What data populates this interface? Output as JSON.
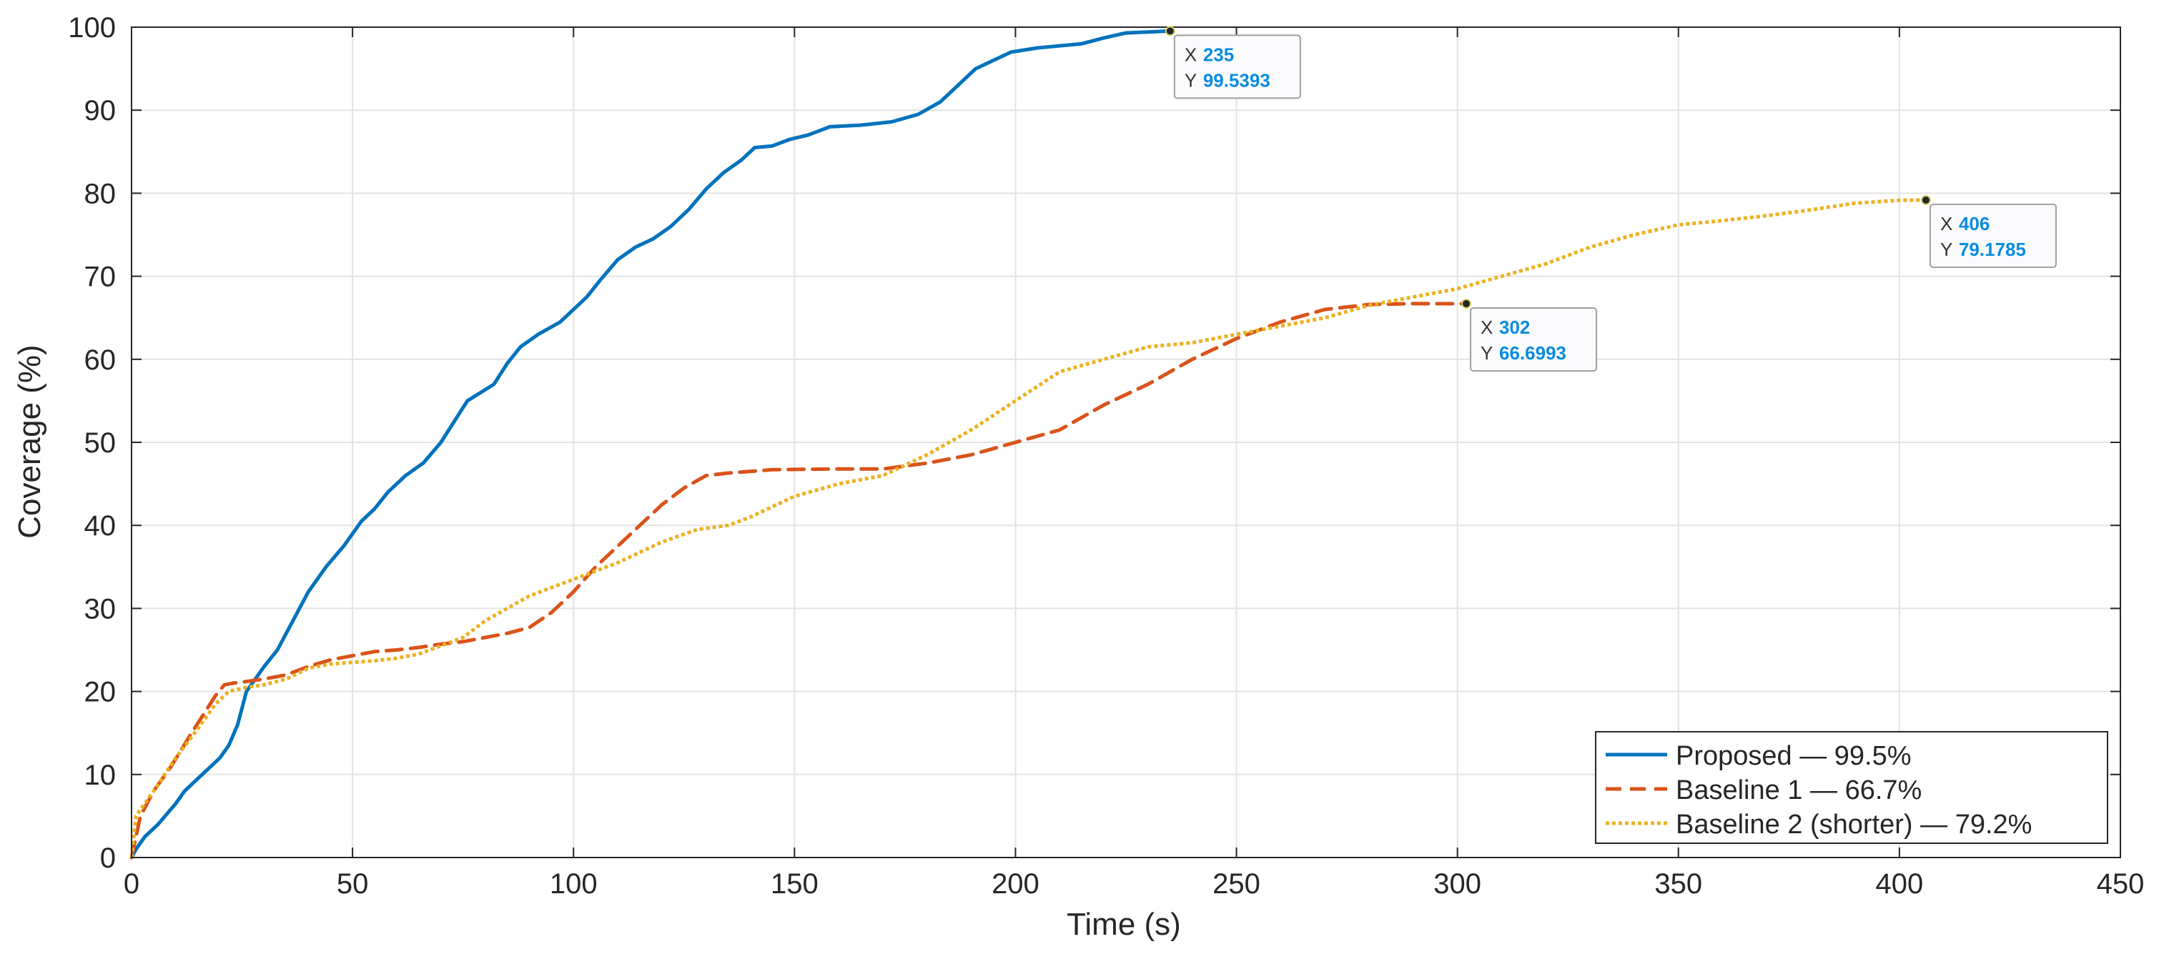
{
  "chart_data": {
    "type": "line",
    "title": "",
    "xlabel": "Time (s)",
    "ylabel": "Coverage (%)",
    "xlim": [
      0,
      450
    ],
    "ylim": [
      0,
      100
    ],
    "xticks": [
      0,
      50,
      100,
      150,
      200,
      250,
      300,
      350,
      400,
      450
    ],
    "yticks": [
      0,
      10,
      20,
      30,
      40,
      50,
      60,
      70,
      80,
      90,
      100
    ],
    "grid": true,
    "legend_position": "bottom-right",
    "series": [
      {
        "name": "Proposed — 99.5%",
        "color": "#0072BD",
        "style": "solid",
        "points": [
          [
            0,
            0
          ],
          [
            1,
            1
          ],
          [
            3,
            2.5
          ],
          [
            6,
            4
          ],
          [
            10,
            6.5
          ],
          [
            12,
            8
          ],
          [
            15,
            9.5
          ],
          [
            18,
            11
          ],
          [
            20,
            12
          ],
          [
            22,
            13.5
          ],
          [
            24,
            16
          ],
          [
            26,
            20
          ],
          [
            28,
            21.5
          ],
          [
            30,
            23
          ],
          [
            33,
            25
          ],
          [
            36,
            28
          ],
          [
            40,
            32
          ],
          [
            44,
            35
          ],
          [
            48,
            37.5
          ],
          [
            52,
            40.5
          ],
          [
            55,
            42
          ],
          [
            58,
            44
          ],
          [
            62,
            46
          ],
          [
            66,
            47.5
          ],
          [
            70,
            50
          ],
          [
            73,
            52.5
          ],
          [
            76,
            55
          ],
          [
            79,
            56
          ],
          [
            82,
            57
          ],
          [
            85,
            59.5
          ],
          [
            88,
            61.5
          ],
          [
            92,
            63
          ],
          [
            97,
            64.5
          ],
          [
            100,
            66
          ],
          [
            103,
            67.5
          ],
          [
            106,
            69.5
          ],
          [
            110,
            72
          ],
          [
            114,
            73.5
          ],
          [
            118,
            74.5
          ],
          [
            122,
            76
          ],
          [
            126,
            78
          ],
          [
            130,
            80.5
          ],
          [
            134,
            82.5
          ],
          [
            138,
            84
          ],
          [
            141,
            85.5
          ],
          [
            145,
            85.7
          ],
          [
            149,
            86.5
          ],
          [
            153,
            87
          ],
          [
            158,
            88
          ],
          [
            165,
            88.2
          ],
          [
            172,
            88.6
          ],
          [
            178,
            89.5
          ],
          [
            183,
            91
          ],
          [
            187,
            93
          ],
          [
            191,
            95
          ],
          [
            195,
            96
          ],
          [
            199,
            97
          ],
          [
            205,
            97.5
          ],
          [
            215,
            98
          ],
          [
            220,
            98.7
          ],
          [
            225,
            99.3
          ],
          [
            235,
            99.5393
          ]
        ]
      },
      {
        "name": "Baseline 1 — 66.7%",
        "color": "#D95319",
        "style": "dashed",
        "points": [
          [
            0,
            0
          ],
          [
            2,
            5
          ],
          [
            5,
            8
          ],
          [
            9,
            11
          ],
          [
            13,
            14.5
          ],
          [
            16,
            17
          ],
          [
            19,
            19.5
          ],
          [
            21,
            20.8
          ],
          [
            23,
            21
          ],
          [
            26,
            21.2
          ],
          [
            30,
            21.5
          ],
          [
            35,
            22
          ],
          [
            40,
            23
          ],
          [
            45,
            23.8
          ],
          [
            50,
            24.3
          ],
          [
            55,
            24.8
          ],
          [
            60,
            25
          ],
          [
            65,
            25.3
          ],
          [
            70,
            25.7
          ],
          [
            75,
            26
          ],
          [
            80,
            26.5
          ],
          [
            85,
            27
          ],
          [
            90,
            27.7
          ],
          [
            95,
            29.5
          ],
          [
            100,
            32
          ],
          [
            105,
            35
          ],
          [
            110,
            37.5
          ],
          [
            115,
            40
          ],
          [
            120,
            42.5
          ],
          [
            125,
            44.5
          ],
          [
            130,
            46
          ],
          [
            135,
            46.3
          ],
          [
            145,
            46.7
          ],
          [
            160,
            46.8
          ],
          [
            170,
            46.8
          ],
          [
            180,
            47.5
          ],
          [
            190,
            48.5
          ],
          [
            200,
            50
          ],
          [
            210,
            51.5
          ],
          [
            220,
            54.5
          ],
          [
            230,
            57
          ],
          [
            240,
            60
          ],
          [
            250,
            62.5
          ],
          [
            260,
            64.5
          ],
          [
            270,
            66
          ],
          [
            280,
            66.6
          ],
          [
            290,
            66.7
          ],
          [
            302,
            66.6993
          ]
        ]
      },
      {
        "name": "Baseline 2 (shorter) — 79.2%",
        "color": "#EDB120",
        "style": "dotted",
        "points": [
          [
            0,
            0
          ],
          [
            1,
            5
          ],
          [
            5,
            8
          ],
          [
            10,
            12
          ],
          [
            15,
            15.5
          ],
          [
            19,
            18.5
          ],
          [
            22,
            20
          ],
          [
            26,
            20.5
          ],
          [
            30,
            20.8
          ],
          [
            35,
            21.5
          ],
          [
            40,
            22.8
          ],
          [
            45,
            23.3
          ],
          [
            50,
            23.5
          ],
          [
            55,
            23.7
          ],
          [
            60,
            24
          ],
          [
            65,
            24.5
          ],
          [
            70,
            25.5
          ],
          [
            75,
            26.5
          ],
          [
            80,
            28.5
          ],
          [
            85,
            30
          ],
          [
            90,
            31.5
          ],
          [
            95,
            32.5
          ],
          [
            100,
            33.5
          ],
          [
            110,
            35.5
          ],
          [
            120,
            38
          ],
          [
            128,
            39.5
          ],
          [
            135,
            40
          ],
          [
            140,
            41
          ],
          [
            150,
            43.5
          ],
          [
            160,
            45
          ],
          [
            170,
            46
          ],
          [
            180,
            48.5
          ],
          [
            190,
            51.5
          ],
          [
            200,
            55
          ],
          [
            210,
            58.5
          ],
          [
            220,
            60
          ],
          [
            230,
            61.5
          ],
          [
            240,
            62
          ],
          [
            250,
            63
          ],
          [
            260,
            64
          ],
          [
            270,
            65
          ],
          [
            280,
            66.5
          ],
          [
            290,
            67.5
          ],
          [
            300,
            68.5
          ],
          [
            310,
            70
          ],
          [
            320,
            71.5
          ],
          [
            330,
            73.5
          ],
          [
            340,
            75
          ],
          [
            350,
            76.2
          ],
          [
            360,
            76.7
          ],
          [
            370,
            77.3
          ],
          [
            380,
            78
          ],
          [
            390,
            78.8
          ],
          [
            400,
            79.15
          ],
          [
            406,
            79.1785
          ]
        ]
      }
    ],
    "annotations": [
      {
        "series": 0,
        "x": 235,
        "y": 99.5393,
        "x_label": "X",
        "x_text": "235",
        "y_label": "Y",
        "y_text": "99.5393"
      },
      {
        "series": 1,
        "x": 302,
        "y": 66.6993,
        "x_label": "X",
        "x_text": "302",
        "y_label": "Y",
        "y_text": "66.6993"
      },
      {
        "series": 2,
        "x": 406,
        "y": 79.1785,
        "x_label": "X",
        "x_text": "406",
        "y_label": "Y",
        "y_text": "79.1785"
      }
    ],
    "colors": {
      "grid": "#e3e3e3",
      "axis": "#262626",
      "datatip_value": "#0a8be0",
      "datatip_border": "#a0a0a0"
    }
  }
}
